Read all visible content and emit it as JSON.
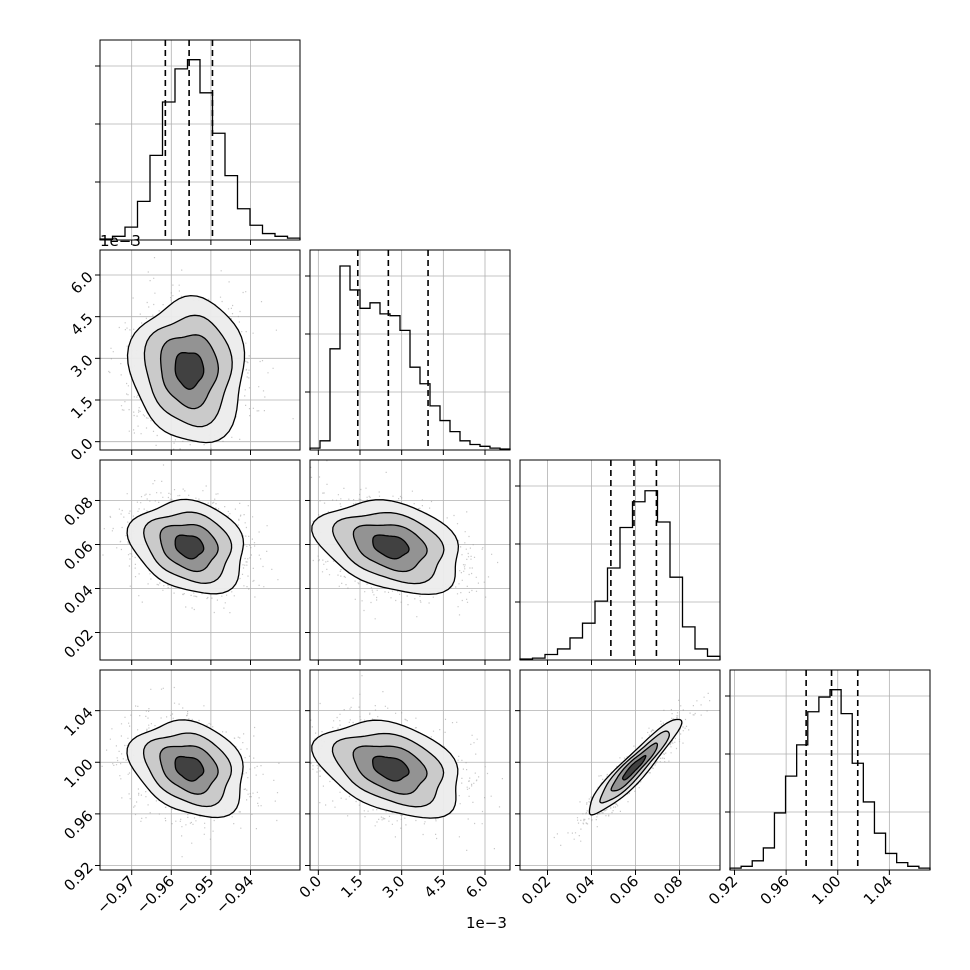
{
  "chart_data": {
    "type": "corner",
    "grid": true,
    "parameters": [
      {
        "scale_factor_label": "",
        "range": [
          -0.978,
          -0.9275
        ],
        "ticks": [
          -0.97,
          -0.96,
          -0.95,
          -0.94
        ],
        "tick_labels": [
          "−0.97",
          "−0.96",
          "−0.95",
          "−0.94"
        ],
        "quantiles": [
          -0.9615,
          -0.9555,
          -0.9496
        ]
      },
      {
        "scale_factor_label": "1e−3",
        "range": [
          -0.0003,
          0.0069
        ],
        "ticks": [
          0.0,
          0.0015,
          0.003,
          0.0045,
          0.006
        ],
        "tick_labels": [
          "0.0",
          "1.5",
          "3.0",
          "4.5",
          "6.0"
        ],
        "quantiles": [
          0.00142,
          0.00252,
          0.00395
        ]
      },
      {
        "scale_factor_label": "",
        "range": [
          0.0075,
          0.0984
        ],
        "ticks": [
          0.02,
          0.04,
          0.06,
          0.08
        ],
        "tick_labels": [
          "0.02",
          "0.04",
          "0.06",
          "0.08"
        ],
        "quantiles": [
          0.0488,
          0.0593,
          0.0695
        ]
      },
      {
        "scale_factor_label": "",
        "range": [
          0.9165,
          1.0715
        ],
        "ticks": [
          0.92,
          0.96,
          1.0,
          1.04
        ],
        "tick_labels": [
          "0.92",
          "0.96",
          "1.00",
          "1.04"
        ],
        "quantiles": [
          0.9755,
          0.9952,
          1.0155
        ]
      }
    ],
    "histograms": [
      [
        0.005,
        0.02,
        0.07,
        0.21,
        0.46,
        0.75,
        0.93,
        0.98,
        0.8,
        0.58,
        0.35,
        0.17,
        0.08,
        0.035,
        0.02,
        0.01
      ],
      [
        0.01,
        0.05,
        0.55,
        1.0,
        0.87,
        0.77,
        0.8,
        0.74,
        0.73,
        0.65,
        0.45,
        0.36,
        0.24,
        0.16,
        0.1,
        0.05,
        0.03,
        0.02,
        0.01,
        0.005
      ],
      [
        0.005,
        0.01,
        0.03,
        0.06,
        0.12,
        0.2,
        0.32,
        0.5,
        0.72,
        0.86,
        0.92,
        0.75,
        0.45,
        0.18,
        0.06,
        0.02
      ],
      [
        0.01,
        0.02,
        0.05,
        0.12,
        0.31,
        0.51,
        0.68,
        0.86,
        0.94,
        0.98,
        0.85,
        0.58,
        0.37,
        0.2,
        0.09,
        0.04,
        0.02,
        0.01
      ]
    ],
    "pairs": [
      {
        "x": 0,
        "y": 1,
        "mean": [
          -0.9555,
          0.0026
        ],
        "sd": [
          0.0072,
          0.0013
        ],
        "corr": -0.05
      },
      {
        "x": 0,
        "y": 2,
        "mean": [
          -0.9555,
          0.0592
        ],
        "sd": [
          0.0072,
          0.0105
        ],
        "corr": -0.2
      },
      {
        "x": 1,
        "y": 2,
        "mean": [
          0.0026,
          0.0592
        ],
        "sd": [
          0.0013,
          0.0105
        ],
        "corr": -0.3
      },
      {
        "x": 0,
        "y": 3,
        "mean": [
          -0.9555,
          0.9955
        ],
        "sd": [
          0.0072,
          0.0185
        ],
        "corr": -0.25
      },
      {
        "x": 1,
        "y": 3,
        "mean": [
          0.0026,
          0.9955
        ],
        "sd": [
          0.0013,
          0.0185
        ],
        "corr": -0.35
      },
      {
        "x": 2,
        "y": 3,
        "mean": [
          0.0592,
          0.9955
        ],
        "sd": [
          0.0105,
          0.0185
        ],
        "corr": 0.93
      }
    ],
    "contour_levels_sigma": [
      0.5,
      1.0,
      1.5,
      2.0
    ]
  }
}
